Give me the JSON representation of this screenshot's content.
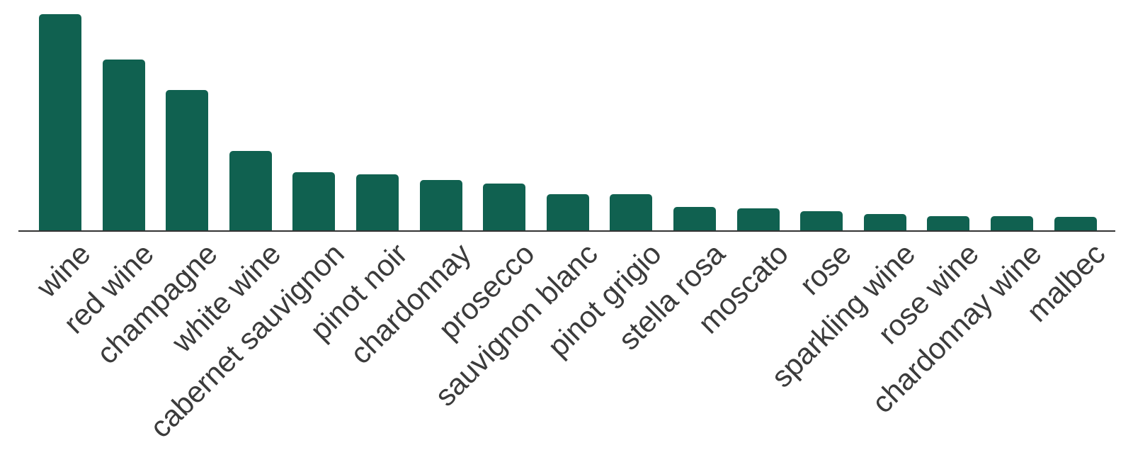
{
  "page": {
    "background": "#ffffff"
  },
  "chart_data": {
    "type": "bar",
    "title": "",
    "xlabel": "",
    "ylabel": "",
    "orientation": "vertical",
    "grid": false,
    "legend": "none",
    "y_axis_visible": false,
    "x_axis_line": true,
    "tick_label_rotation_deg": 45,
    "ylim": [
      0,
      100
    ],
    "categories": [
      "wine",
      "red wine",
      "champagne",
      "white wine",
      "cabernet sauvignon",
      "pinot noir",
      "chardonnay",
      "prosecco",
      "sauvignon blanc",
      "pinot grigio",
      "stella rosa",
      "moscato",
      "rose",
      "sparkling wine",
      "rose wine",
      "chardonnay wine",
      "malbec"
    ],
    "values": [
      100,
      79,
      65,
      37,
      27,
      26,
      23.5,
      22,
      17,
      17,
      11,
      10.5,
      9,
      8,
      7,
      7,
      6.5
    ],
    "colors": {
      "bar": "#106150",
      "axis_line": "#333333",
      "tick_label": "#3b3b3b",
      "background": "#ffffff"
    }
  }
}
